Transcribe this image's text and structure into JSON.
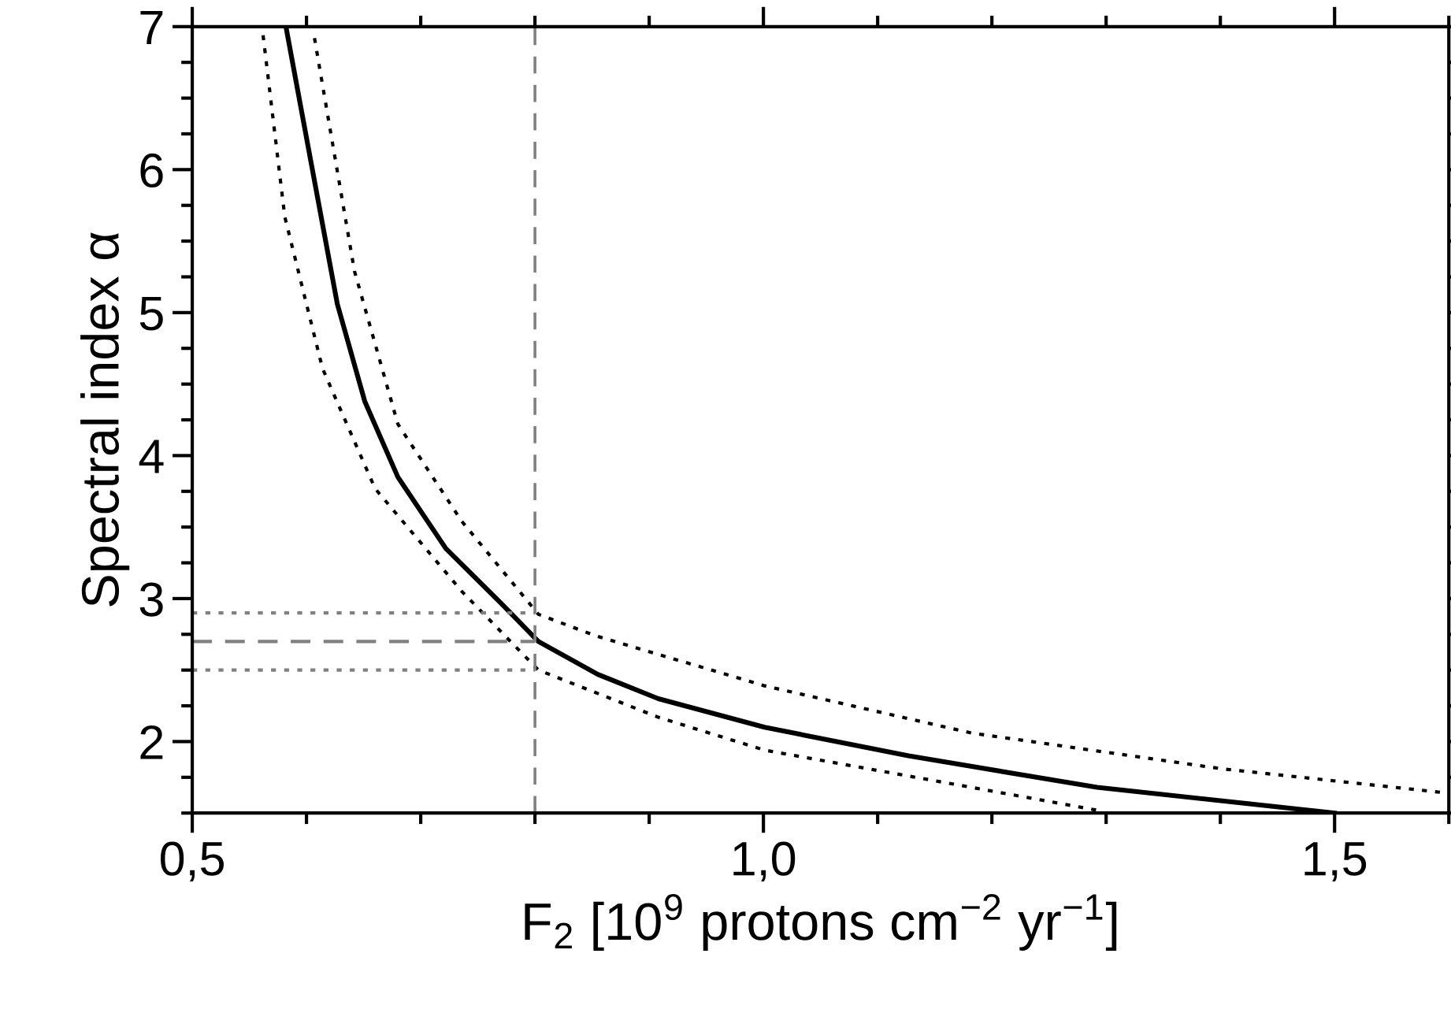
{
  "chart_data": {
    "type": "line",
    "xlabel": "F$_{2}$ [10$^{9}$ protons cm$^{−2}$ yr$^{−1}$]",
    "ylabel": "Spectral index α",
    "xlim": [
      0.5,
      1.6
    ],
    "ylim": [
      1.5,
      7
    ],
    "xticks": [
      {
        "value": 0.5,
        "label": "0,5"
      },
      {
        "value": 1.0,
        "label": "1,0"
      },
      {
        "value": 1.5,
        "label": "1,5"
      }
    ],
    "yticks": [
      2,
      3,
      4,
      5,
      6,
      7
    ],
    "grid": false,
    "legend": false,
    "marker": "none",
    "series": [
      {
        "color": "#000000",
        "line_style": "solid",
        "x": [
          0.582,
          0.604,
          0.627,
          0.651,
          0.68,
          0.722,
          0.77,
          0.803,
          0.855,
          0.908,
          1.001,
          1.127,
          1.292,
          1.5
        ],
        "values": [
          7.0,
          6.05,
          5.06,
          4.38,
          3.85,
          3.35,
          2.97,
          2.7,
          2.47,
          2.3,
          2.1,
          1.9,
          1.68,
          1.5
        ]
      },
      {
        "color": "#000000",
        "line_style": "dotted",
        "x": [
          0.607,
          0.642,
          0.68,
          0.736,
          0.803,
          0.853,
          1.001,
          1.182,
          1.401,
          1.599
        ],
        "values": [
          6.92,
          5.29,
          4.22,
          3.54,
          2.89,
          2.74,
          2.39,
          2.06,
          1.81,
          1.64
        ]
      },
      {
        "color": "#000000",
        "line_style": "dotted",
        "x": [
          0.562,
          0.581,
          0.614,
          0.66,
          0.736,
          0.803,
          0.908,
          1.001,
          1.182,
          1.292
        ],
        "values": [
          6.94,
          5.67,
          4.61,
          3.77,
          3.05,
          2.5,
          2.17,
          1.94,
          1.68,
          1.52
        ]
      },
      {
        "color": "#808080",
        "line_style": "dashed",
        "x": [
          0.5,
          0.8
        ],
        "values": [
          2.7,
          2.7
        ]
      },
      {
        "color": "#808080",
        "line_style": "dotted",
        "x": [
          0.5,
          0.8
        ],
        "values": [
          2.9,
          2.9
        ]
      },
      {
        "color": "#808080",
        "line_style": "dotted",
        "x": [
          0.5,
          0.8
        ],
        "values": [
          2.5,
          2.5
        ]
      }
    ],
    "ref_lines": [
      {
        "axis": "x",
        "value": 0.8,
        "color": "#808080",
        "line_style": "dashed"
      }
    ]
  }
}
